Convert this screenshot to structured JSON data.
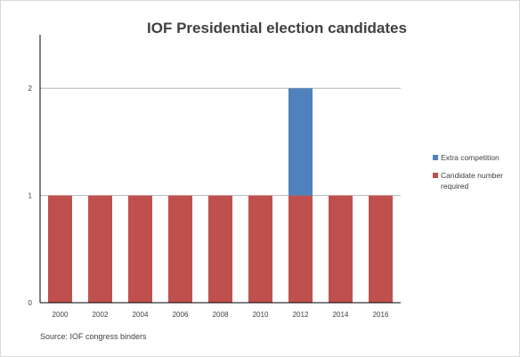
{
  "chart_data": {
    "type": "bar",
    "stacked": true,
    "title": "IOF Presidential election candidates",
    "xlabel": "",
    "ylabel": "",
    "categories": [
      "2000",
      "2002",
      "2004",
      "2006",
      "2008",
      "2010",
      "2012",
      "2014",
      "2016"
    ],
    "series": [
      {
        "name": "Candidate number required",
        "color": "#c0504d",
        "values": [
          1,
          1,
          1,
          1,
          1,
          1,
          1,
          1,
          1
        ]
      },
      {
        "name": "Extra competition",
        "color": "#4f81bd",
        "values": [
          0,
          0,
          0,
          0,
          0,
          0,
          1,
          0,
          0
        ]
      }
    ],
    "ylim": [
      0,
      2.5
    ],
    "yticks": [
      0,
      1,
      2
    ],
    "grid": true,
    "legend_position": "right",
    "legend_order": [
      "Extra competition",
      "Candidate number required"
    ]
  },
  "source": "Source:  IOF congress binders"
}
